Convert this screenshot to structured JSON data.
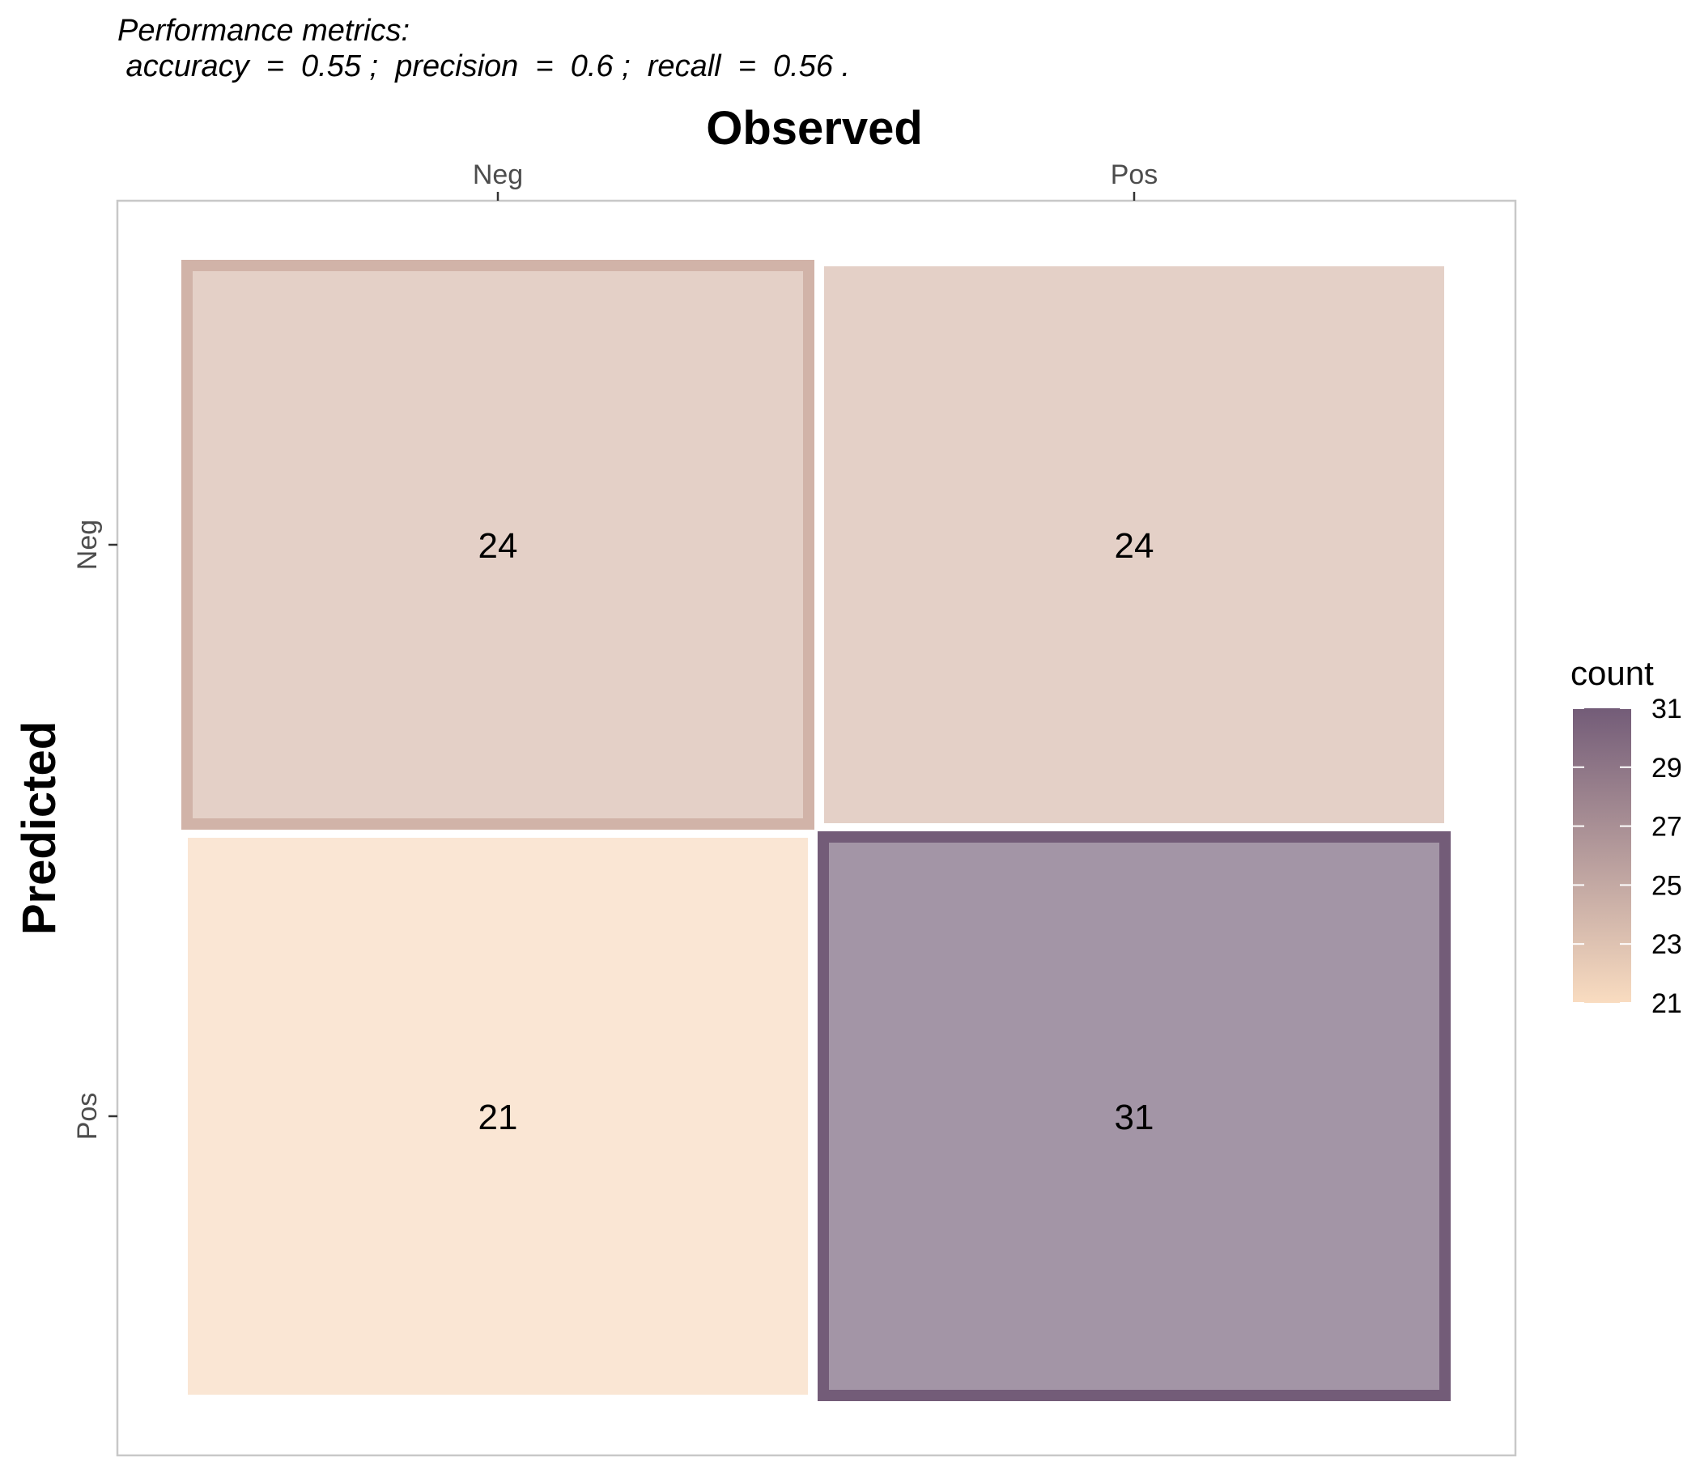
{
  "chart_data": {
    "type": "heatmap",
    "subtitle_line1": "Performance metrics:",
    "subtitle_line2": " accuracy  =  0.55 ;  precision  =  0.6 ;  recall  =  0.56 .",
    "xlabel": "Observed",
    "ylabel": "Predicted",
    "x_categories": [
      "Neg",
      "Pos"
    ],
    "y_categories": [
      "Neg",
      "Pos"
    ],
    "cells": [
      {
        "observed": "Neg",
        "predicted": "Neg",
        "count": 24,
        "highlight": true
      },
      {
        "observed": "Pos",
        "predicted": "Neg",
        "count": 24,
        "highlight": false
      },
      {
        "observed": "Neg",
        "predicted": "Pos",
        "count": 21,
        "highlight": false
      },
      {
        "observed": "Pos",
        "predicted": "Pos",
        "count": 31,
        "highlight": true
      }
    ],
    "legend": {
      "title": "count",
      "min": 21,
      "max": 31,
      "ticks": [
        21,
        23,
        25,
        27,
        29,
        31
      ],
      "low_color": "#f9dcc0",
      "high_color": "#735c78"
    },
    "colors": {
      "cell_fill_low": "#fae6d4",
      "cell_fill_mid": "#e0ccc5",
      "cell_fill_high": "#a395a6",
      "border_low": "#d1b3a8",
      "border_high": "#735c78",
      "panel_border": "#c8c8c8"
    }
  }
}
